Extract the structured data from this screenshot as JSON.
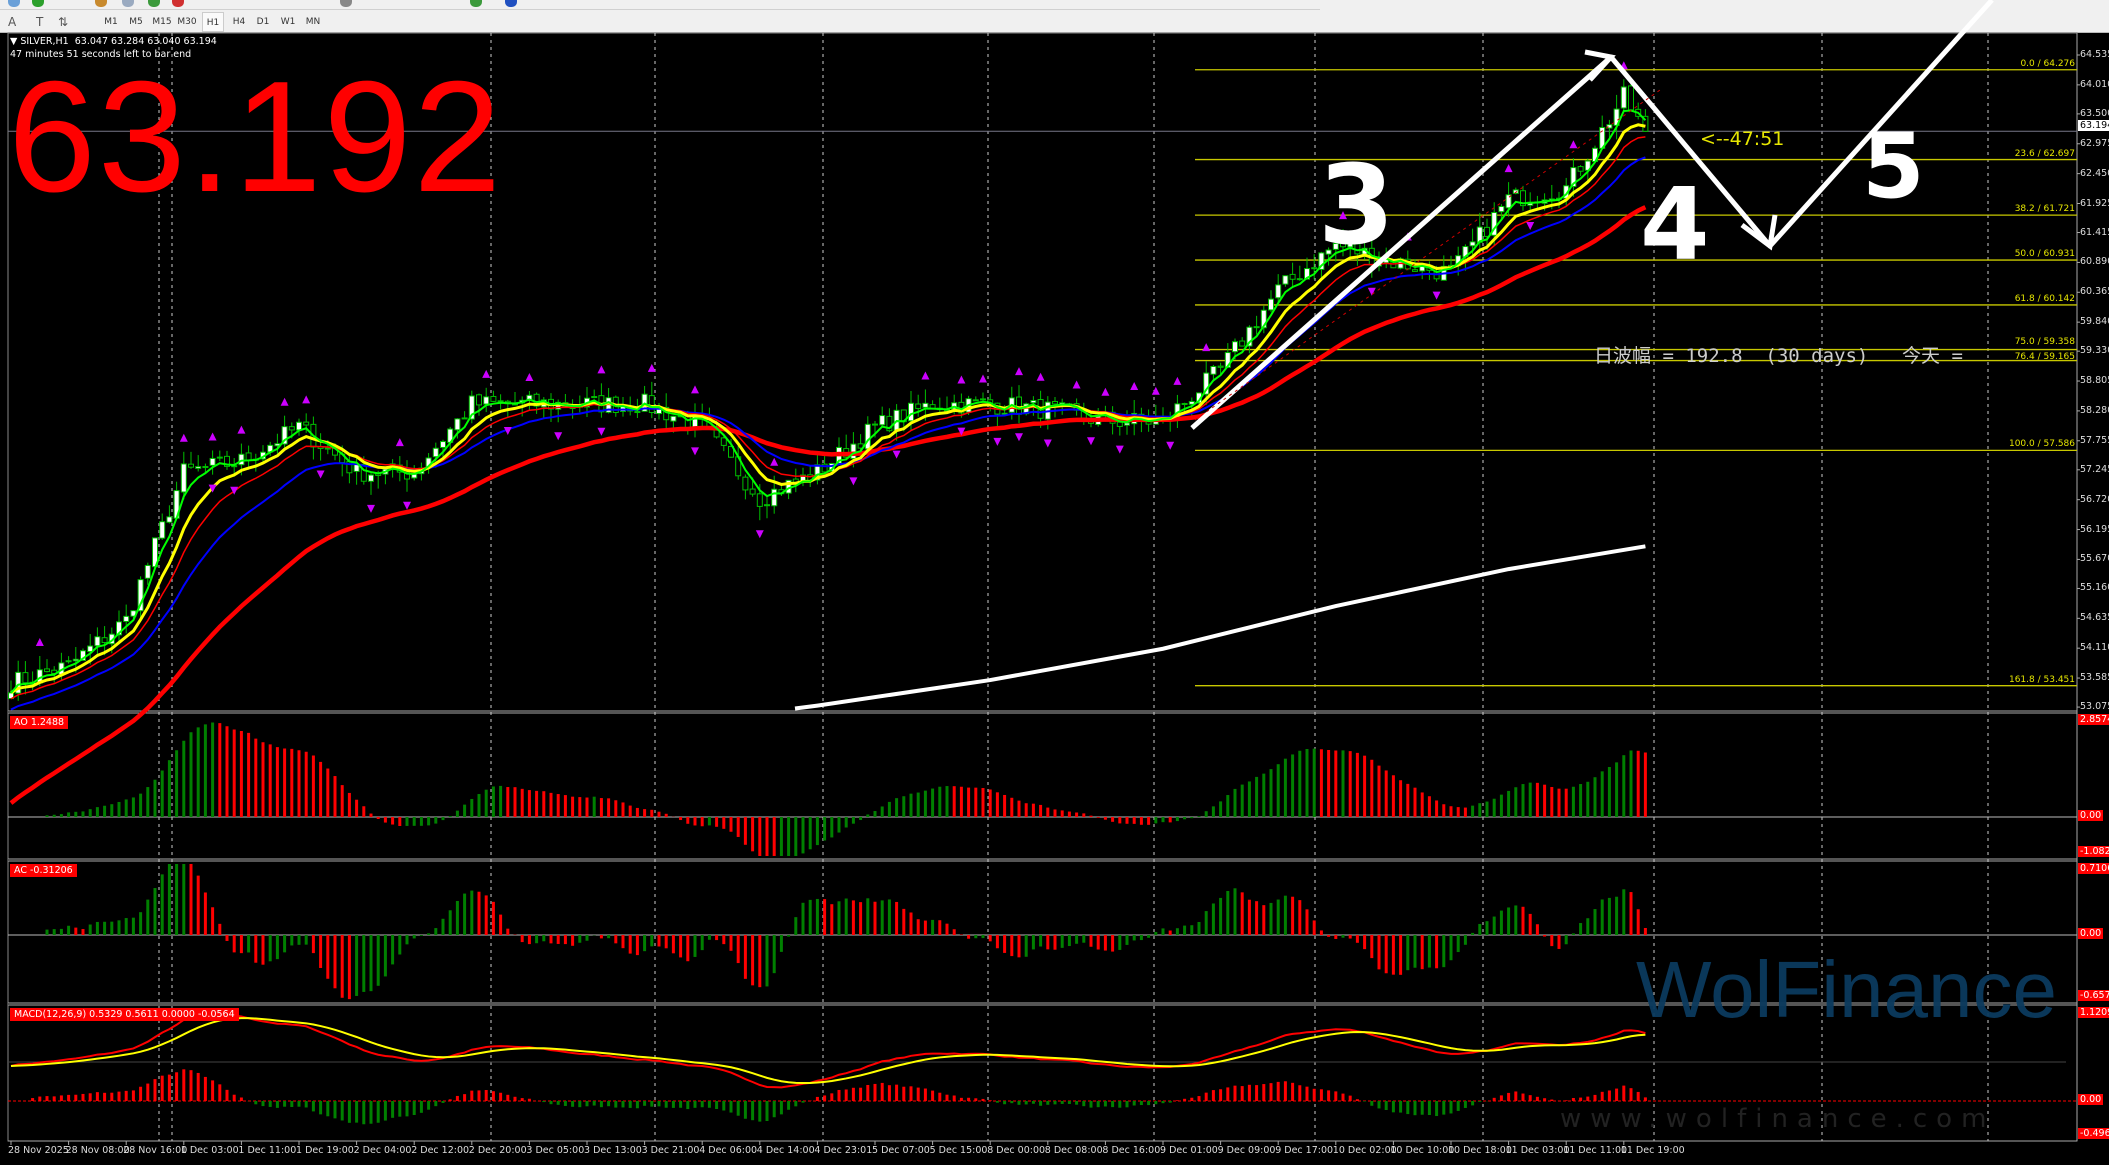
{
  "toolbar": {
    "tools": [
      "A",
      "T",
      "⇅"
    ],
    "timeframes": [
      "M1",
      "M5",
      "M15",
      "M30",
      "H1",
      "H4",
      "D1",
      "W1",
      "MN"
    ],
    "active_timeframe": "H1"
  },
  "chart": {
    "header": "▼ SILVER,H1  63.047 63.284 63.040 63.194",
    "bar_timer": "47 minutes 51 seconds left to bar end",
    "big_price": "63.192",
    "current_price": "63.194",
    "countdown": "<--47:51",
    "daily_range": "日波幅 = 192.8  (30 days)",
    "today": "今天 =",
    "hand_labels": [
      "3",
      "4",
      "5"
    ],
    "watermark": "WolFinance",
    "watermark_url": "www.wolfinance.com",
    "colors": {
      "bull_body": "#ffffff",
      "bear_body": "#000000",
      "candle_outline": "#00c000",
      "ma_fast": "#00ff00",
      "ma_yellow": "#ffff00",
      "ma_red": "#ff0000",
      "ma_blue": "#0000ff",
      "ma_long": "#ff0000",
      "ma_white": "#ffffff",
      "fib": "#c8c800",
      "fractal": "#cc00ff",
      "hist_up": "#008000",
      "hist_down": "#ff0000"
    }
  },
  "price_axis": [
    "64.535",
    "64.010",
    "63.500",
    "62.975",
    "62.450",
    "61.925",
    "61.415",
    "60.890",
    "60.365",
    "59.840",
    "59.330",
    "58.805",
    "58.280",
    "57.755",
    "57.245",
    "56.720",
    "56.195",
    "55.670",
    "55.160",
    "54.635",
    "54.110",
    "53.585",
    "53.075"
  ],
  "fib_levels": [
    {
      "level": "0.0",
      "price": "64.276"
    },
    {
      "level": "23.6",
      "price": "62.697"
    },
    {
      "level": "38.2",
      "price": "61.721"
    },
    {
      "level": "50.0",
      "price": "60.931"
    },
    {
      "level": "61.8",
      "price": "60.142"
    },
    {
      "level": "75.0",
      "price": "59.358"
    },
    {
      "level": "76.4",
      "price": "59.165"
    },
    {
      "level": "100.0",
      "price": "57.586"
    },
    {
      "level": "161.8",
      "price": "53.451"
    }
  ],
  "indicators": {
    "ao": {
      "label": "AO 1.2488",
      "max": "2.8574",
      "zero": "0.00",
      "min": "-1.0823"
    },
    "ac": {
      "label": "AC -0.31206",
      "max": "0.71068",
      "zero": "0.00",
      "min": "-0.65707"
    },
    "macd": {
      "label": "MACD(12,26,9) 0.5329 0.5611 0.0000 -0.0564",
      "max": "1.1209",
      "zero": "0.00",
      "min": "-0.4964"
    }
  },
  "chart_data": {
    "type": "candlestick",
    "symbol": "SILVER",
    "timeframe": "H1",
    "x_ticks": [
      "28 Nov 2025",
      "28 Nov 08:00",
      "28 Nov 16:00",
      "1 Dec 03:00",
      "1 Dec 11:00",
      "1 Dec 19:00",
      "2 Dec 04:00",
      "2 Dec 12:00",
      "2 Dec 20:00",
      "3 Dec 05:00",
      "3 Dec 13:00",
      "3 Dec 21:00",
      "4 Dec 06:00",
      "4 Dec 14:00",
      "4 Dec 23:01",
      "5 Dec 07:00",
      "5 Dec 15:00",
      "8 Dec 00:00",
      "8 Dec 08:00",
      "8 Dec 16:00",
      "9 Dec 01:00",
      "9 Dec 09:00",
      "9 Dec 17:00",
      "10 Dec 02:00",
      "10 Dec 10:00",
      "10 Dec 18:00",
      "11 Dec 03:00",
      "11 Dec 11:00",
      "11 Dec 19:00"
    ],
    "approx_price_at_ticks": [
      53.5,
      53.8,
      54.6,
      57.2,
      57.4,
      58.0,
      57.2,
      57.2,
      58.4,
      58.4,
      58.4,
      58.4,
      58.0,
      56.75,
      57.2,
      58.0,
      58.4,
      58.4,
      58.3,
      58.1,
      58.1,
      59.0,
      60.4,
      61.2,
      60.9,
      60.7,
      62.0,
      62.2,
      63.8
    ],
    "last_price": 63.194,
    "long_ma_white": {
      "ticks": [
        "4 Dec 23:01",
        "8 Dec 00:00",
        "9 Dec 01:00",
        "10 Dec 02:00",
        "11 Dec 03:00",
        "11 Dec 19:00"
      ],
      "values": [
        53.1,
        53.55,
        54.1,
        54.85,
        55.5,
        55.9
      ]
    },
    "ylim": [
      53.075,
      64.535
    ],
    "grid": true
  }
}
